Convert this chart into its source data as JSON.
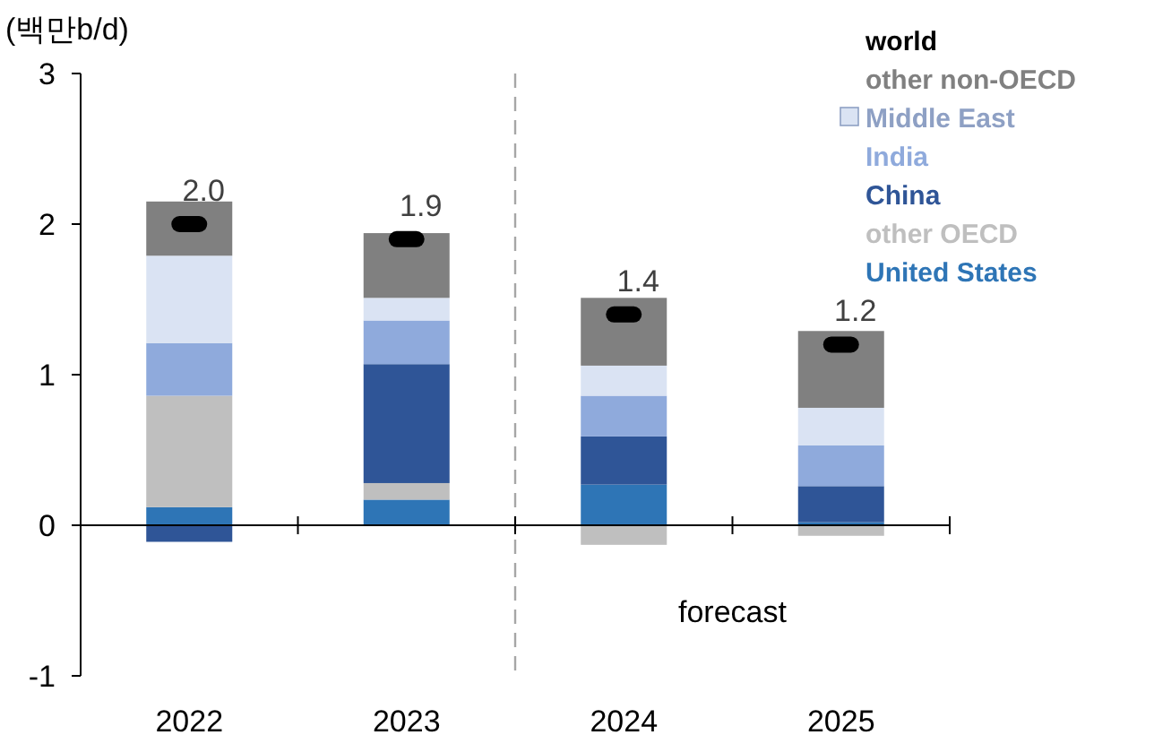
{
  "chart_data": {
    "type": "bar",
    "stacked": true,
    "ylabel": "(백만b/d)",
    "categories": [
      "2022",
      "2023",
      "2024",
      "2025"
    ],
    "ylim": [
      -1,
      3
    ],
    "yticks": [
      -1,
      0,
      1,
      2,
      3
    ],
    "legend": "top right",
    "series": [
      {
        "name": "United States",
        "color": "#2e75b6",
        "values": [
          0.12,
          0.17,
          0.27,
          0.02
        ]
      },
      {
        "name": "other OECD",
        "color": "#bfbfbf",
        "values": [
          0.74,
          0.11,
          -0.13,
          -0.07
        ]
      },
      {
        "name": "China",
        "color": "#2f5597",
        "values": [
          -0.11,
          0.79,
          0.32,
          0.24
        ]
      },
      {
        "name": "India",
        "color": "#8faadc",
        "values": [
          0.35,
          0.29,
          0.27,
          0.27
        ]
      },
      {
        "name": "Middle East",
        "color": "#dae3f3",
        "values": [
          0.58,
          0.15,
          0.2,
          0.25
        ]
      },
      {
        "name": "other non-OECD",
        "color": "#808080",
        "values": [
          0.36,
          0.43,
          0.45,
          0.51
        ]
      },
      {
        "name": "world",
        "type": "scatter",
        "color": "#000000",
        "values": [
          2.0,
          1.9,
          1.4,
          1.2
        ],
        "value_labels": [
          "2.0",
          "1.9",
          "1.4",
          "1.2"
        ]
      }
    ],
    "ref_lines": [
      {
        "axis": "x",
        "value": "2024",
        "label": null,
        "color": "#a6a6a6",
        "line_style": "dashed"
      }
    ],
    "annotations": [
      "forecast"
    ]
  }
}
